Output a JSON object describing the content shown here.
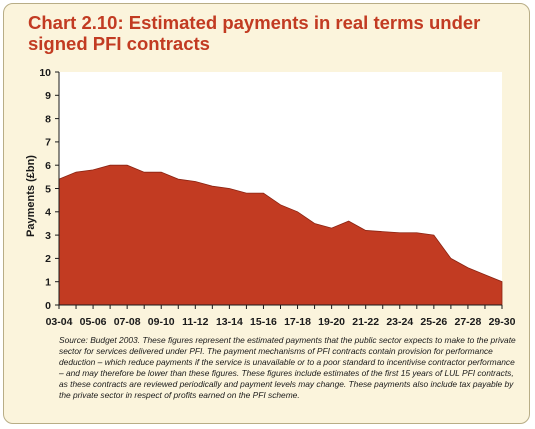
{
  "title": "Chart 2.10: Estimated payments in real terms under signed PFI contracts",
  "source_note": "Source: Budget 2003. These figures represent the estimated payments that the public sector expects to make to the private sector for services delivered under PFI. The payment mechanisms of PFI contracts contain provision for performance deduction – which reduce payments if the service is unavailable or to a poor standard to incentivise contractor performance – and may therefore be lower than these figures. These figures include estimates of the first 15 years of LUL PFI contracts, as these contracts are reviewed periodically and payment levels may change. These payments also include tax payable by the private sector in respect of profits earned on the PFI scheme.",
  "colors": {
    "background": "#fbf4dc",
    "border": "#b8ad86",
    "title": "#c23b22",
    "area_fill": "#c23b22",
    "area_stroke": "#8a2412"
  },
  "chart_data": {
    "type": "area",
    "title": "Chart 2.10: Estimated payments in real terms under signed PFI contracts",
    "xlabel": "",
    "ylabel": "Payments (£bn)",
    "ylim": [
      0,
      10
    ],
    "yticks": [
      0,
      1,
      2,
      3,
      4,
      5,
      6,
      7,
      8,
      9,
      10
    ],
    "grid": false,
    "legend": "none",
    "x": [
      "03-04",
      "04-05",
      "05-06",
      "06-07",
      "07-08",
      "08-09",
      "09-10",
      "10-11",
      "11-12",
      "12-13",
      "13-14",
      "14-15",
      "15-16",
      "16-17",
      "17-18",
      "18-19",
      "19-20",
      "20-21",
      "21-22",
      "22-23",
      "23-24",
      "24-25",
      "25-26",
      "26-27",
      "27-28",
      "28-29",
      "29-30"
    ],
    "x_tick_labels": [
      "03-04",
      "05-06",
      "07-08",
      "09-10",
      "11-12",
      "13-14",
      "15-16",
      "17-18",
      "19-20",
      "21-22",
      "23-24",
      "25-26",
      "27-28",
      "29-30"
    ],
    "series": [
      {
        "values": [
          5.4,
          5.7,
          5.8,
          6.0,
          6.0,
          5.7,
          5.7,
          5.4,
          5.3,
          5.1,
          5.0,
          4.8,
          4.8,
          4.3,
          4.0,
          3.5,
          3.3,
          3.6,
          3.2,
          3.15,
          3.1,
          3.1,
          3.0,
          2.0,
          1.6,
          1.3,
          1.0
        ]
      }
    ]
  }
}
